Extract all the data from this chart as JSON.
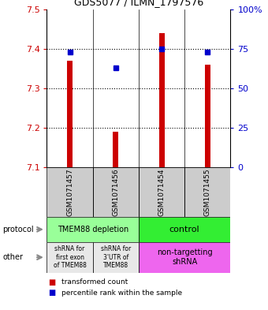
{
  "title": "GDS5077 / ILMN_1797576",
  "samples": [
    "GSM1071457",
    "GSM1071456",
    "GSM1071454",
    "GSM1071455"
  ],
  "red_values": [
    7.37,
    7.19,
    7.44,
    7.36
  ],
  "blue_values": [
    73,
    63,
    75,
    73
  ],
  "ylim": [
    7.1,
    7.5
  ],
  "yticks": [
    7.1,
    7.2,
    7.3,
    7.4,
    7.5
  ],
  "y2ticks": [
    0,
    25,
    50,
    75,
    100
  ],
  "y2labels": [
    "0",
    "25",
    "50",
    "75",
    "100%"
  ],
  "red_color": "#cc0000",
  "blue_color": "#0000cc",
  "bar_bottom": 7.1,
  "bar_width": 0.12,
  "protocol_labels": [
    "TMEM88 depletion",
    "control"
  ],
  "protocol_colors": [
    "#99ff99",
    "#33ee33"
  ],
  "other_labels_left": [
    "shRNA for\nfirst exon\nof TMEM88",
    "shRNA for\n3'UTR of\nTMEM88"
  ],
  "other_label_right": "non-targetting\nshRNA",
  "other_color_left": "#e8e8e8",
  "other_color_right": "#ee66ee",
  "sample_box_color": "#cccccc",
  "legend_red": "transformed count",
  "legend_blue": "percentile rank within the sample",
  "protocol_arrow_label": "protocol",
  "other_arrow_label": "other"
}
